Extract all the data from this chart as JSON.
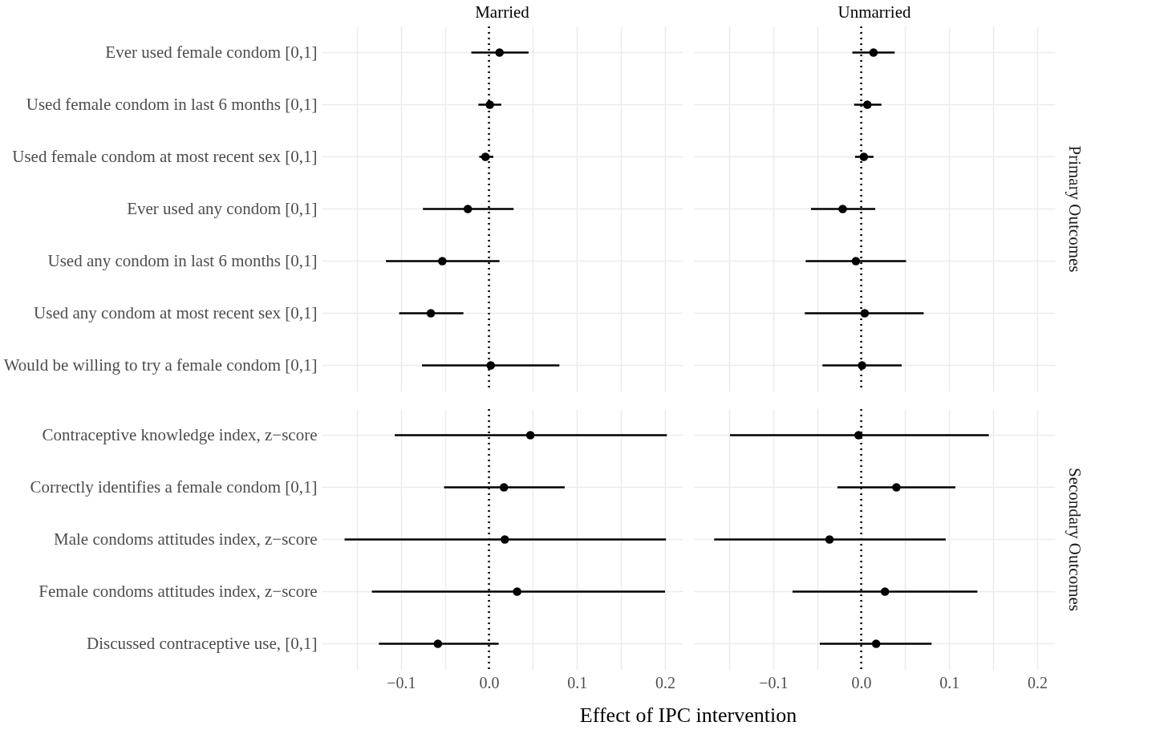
{
  "chart_data": [
    {
      "type": "scatter",
      "orientation": "horizontal",
      "title": "Married",
      "categories": [
        "Ever used female condom [0,1]",
        "Used female condom in last 6 months [0,1]",
        "Used female condom at most recent sex [0,1]",
        "Ever used any condom [0,1]",
        "Used any condom in last 6 months [0,1]",
        "Used any condom at most recent sex [0,1]",
        "Would be willing to try a female condom [0,1]"
      ],
      "series": [
        {
          "color": "#000000",
          "values": [
            0.012,
            0.001,
            -0.004,
            -0.024,
            -0.053,
            -0.066,
            0.002
          ],
          "errors": [
            [
              -0.02,
              0.045
            ],
            [
              -0.012,
              0.014
            ],
            [
              -0.011,
              0.005
            ],
            [
              -0.075,
              0.028
            ],
            [
              -0.117,
              0.012
            ],
            [
              -0.102,
              -0.029
            ],
            [
              -0.076,
              0.08
            ]
          ]
        }
      ],
      "xlim": [
        -0.19,
        0.22
      ],
      "xticks": [
        {
          "value": -0.15,
          "label": null
        },
        {
          "value": -0.1,
          "label": null
        },
        {
          "value": -0.05,
          "label": null
        },
        {
          "value": 0,
          "label": null
        },
        {
          "value": 0.05,
          "label": null
        },
        {
          "value": 0.1,
          "label": null
        },
        {
          "value": 0.15,
          "label": null
        },
        {
          "value": 0.2,
          "label": null
        }
      ],
      "ref_lines": [
        {
          "axis": "x",
          "value": 0,
          "line_style": "dotted"
        }
      ],
      "grid": true,
      "marker": "circle",
      "tick_labels": "y"
    },
    {
      "type": "scatter",
      "orientation": "horizontal",
      "title": "Unmarried",
      "y2label": "Primary Outcomes",
      "categories": [
        null,
        null,
        null,
        null,
        null,
        null,
        null
      ],
      "series": [
        {
          "color": "#000000",
          "values": [
            0.014,
            0.007,
            0.003,
            -0.021,
            -0.006,
            0.004,
            0.001
          ],
          "errors": [
            [
              -0.01,
              0.038
            ],
            [
              -0.008,
              0.023
            ],
            [
              -0.007,
              0.014
            ],
            [
              -0.057,
              0.016
            ],
            [
              -0.063,
              0.051
            ],
            [
              -0.064,
              0.071
            ],
            [
              -0.044,
              0.046
            ]
          ]
        }
      ],
      "xlim": [
        -0.19,
        0.22
      ],
      "xticks": [
        {
          "value": -0.15,
          "label": null
        },
        {
          "value": -0.1,
          "label": null
        },
        {
          "value": -0.05,
          "label": null
        },
        {
          "value": 0,
          "label": null
        },
        {
          "value": 0.05,
          "label": null
        },
        {
          "value": 0.1,
          "label": null
        },
        {
          "value": 0.15,
          "label": null
        },
        {
          "value": 0.2,
          "label": null
        }
      ],
      "ref_lines": [
        {
          "axis": "x",
          "value": 0,
          "line_style": "dotted"
        }
      ],
      "grid": true,
      "marker": "circle",
      "tick_labels": false
    },
    {
      "type": "scatter",
      "orientation": "horizontal",
      "xlabel": "Effect of IPC intervention",
      "categories": [
        "Contraceptive knowledge index, z−score",
        "Correctly identifies a female condom [0,1]",
        "Male condoms attitudes index, z−score",
        "Female condoms attitudes index, z−score",
        "Discussed contraceptive use, [0,1]"
      ],
      "series": [
        {
          "color": "#000000",
          "values": [
            0.047,
            0.017,
            0.018,
            0.032,
            -0.058
          ],
          "errors": [
            [
              -0.107,
              0.202
            ],
            [
              -0.051,
              0.086
            ],
            [
              -0.164,
              0.201
            ],
            [
              -0.133,
              0.2
            ],
            [
              -0.125,
              0.011
            ]
          ]
        }
      ],
      "xlim": [
        -0.19,
        0.22
      ],
      "xticks": [
        {
          "value": -0.15,
          "label": null
        },
        {
          "value": -0.1,
          "label": "−0.1"
        },
        {
          "value": -0.05,
          "label": null
        },
        {
          "value": 0,
          "label": "0.0"
        },
        {
          "value": 0.05,
          "label": null
        },
        {
          "value": 0.1,
          "label": "0.1"
        },
        {
          "value": 0.15,
          "label": null
        },
        {
          "value": 0.2,
          "label": "0.2"
        }
      ],
      "ref_lines": [
        {
          "axis": "x",
          "value": 0,
          "line_style": "dotted"
        }
      ],
      "grid": true,
      "marker": "circle"
    },
    {
      "type": "scatter",
      "orientation": "horizontal",
      "y2label": "Secondary Outcomes",
      "categories": [
        null,
        null,
        null,
        null,
        null
      ],
      "series": [
        {
          "color": "#000000",
          "values": [
            -0.003,
            0.04,
            -0.036,
            0.027,
            0.017
          ],
          "errors": [
            [
              -0.149,
              0.145
            ],
            [
              -0.027,
              0.107
            ],
            [
              -0.167,
              0.096
            ],
            [
              -0.078,
              0.132
            ],
            [
              -0.047,
              0.08
            ]
          ]
        }
      ],
      "xlim": [
        -0.19,
        0.22
      ],
      "xticks": [
        {
          "value": -0.15,
          "label": null
        },
        {
          "value": -0.1,
          "label": "−0.1"
        },
        {
          "value": -0.05,
          "label": null
        },
        {
          "value": 0,
          "label": "0.0"
        },
        {
          "value": 0.05,
          "label": null
        },
        {
          "value": 0.1,
          "label": "0.1"
        },
        {
          "value": 0.15,
          "label": null
        },
        {
          "value": 0.2,
          "label": "0.2"
        }
      ],
      "ref_lines": [
        {
          "axis": "x",
          "value": 0,
          "line_style": "dotted"
        }
      ],
      "grid": true,
      "marker": "circle",
      "tick_labels": "x"
    }
  ]
}
